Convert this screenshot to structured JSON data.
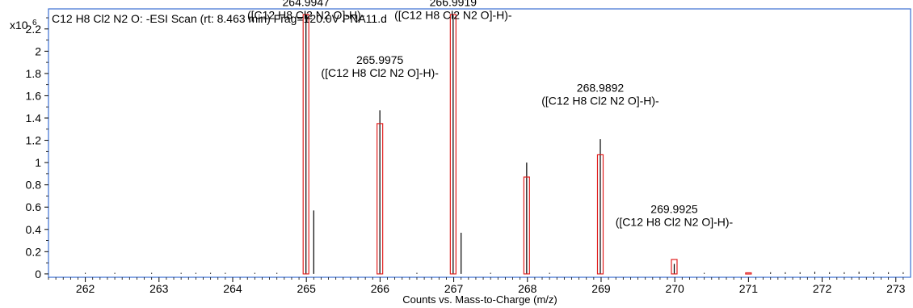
{
  "chart_data": {
    "type": "bar",
    "title": "C12 H8 Cl2 N2 O: -ESI Scan (rt: 8.463 min) Frag=120.0V PNA11.d",
    "y_multiplier": "x10",
    "y_exponent": "6",
    "xlabel": "Counts vs. Mass-to-Charge (m/z)",
    "xlim": [
      261.5,
      273.2
    ],
    "ylim": [
      -0.03,
      2.38
    ],
    "x_ticks": [
      "262",
      "263",
      "264",
      "265",
      "266",
      "267",
      "268",
      "269",
      "270",
      "271",
      "272",
      "273"
    ],
    "y_ticks": [
      "0",
      "0.2",
      "0.4",
      "0.6",
      "0.8",
      "1",
      "1.2",
      "1.4",
      "1.6",
      "1.8",
      "2",
      "2.2"
    ],
    "grid": false,
    "colors": {
      "frame": "#3b6fd1",
      "measured": "#000000",
      "predicted": "#e02020"
    },
    "series": [
      {
        "role": "measured",
        "x": [
          264.9947,
          265.1,
          265.9975,
          266.9919,
          267.1,
          267.99,
          268.9892,
          269.9925
        ],
        "values": [
          2.33,
          0.57,
          1.47,
          2.33,
          0.37,
          1.0,
          1.21,
          0.09
        ]
      },
      {
        "role": "predicted",
        "x": [
          264.9947,
          265.9975,
          266.9919,
          267.99,
          268.9892,
          269.9925,
          271.0
        ],
        "values": [
          2.33,
          1.35,
          2.33,
          0.87,
          1.07,
          0.13,
          0.01
        ]
      }
    ],
    "annotations": [
      {
        "x": 264.9947,
        "mz": "264.9947",
        "formula": "([C12 H8 Cl2 N2 O]-H)-",
        "at": 2.29
      },
      {
        "x": 265.9975,
        "mz": "265.9975",
        "formula": "([C12 H8 Cl2 N2 O]-H)-",
        "at": 1.77
      },
      {
        "x": 266.9919,
        "mz": "266.9919",
        "formula": "([C12 H8 Cl2 N2 O]-H)-",
        "at": 2.29
      },
      {
        "x": 268.9892,
        "mz": "268.9892",
        "formula": "([C12 H8 Cl2 N2 O]-H)-",
        "at": 1.52
      },
      {
        "x": 269.9925,
        "mz": "269.9925",
        "formula": "([C12 H8 Cl2 N2 O]-H)-",
        "at": 0.43
      }
    ],
    "noise": {
      "x": [
        262.0,
        262.4,
        262.9,
        263.3,
        263.5,
        263.7,
        263.9,
        264.3,
        264.6,
        266.5,
        267.5,
        268.3,
        270.4,
        271.3,
        271.5,
        271.7,
        271.9,
        272.1,
        272.3,
        272.5,
        272.7,
        272.9,
        273.1
      ],
      "values": [
        0.01,
        0.01,
        0.01,
        0.01,
        0.01,
        0.01,
        0.01,
        0.01,
        0.01,
        0.01,
        0.01,
        0.01,
        0.01,
        0.015,
        0.015,
        0.015,
        0.02,
        0.015,
        0.015,
        0.02,
        0.015,
        0.015,
        0.015
      ]
    }
  }
}
